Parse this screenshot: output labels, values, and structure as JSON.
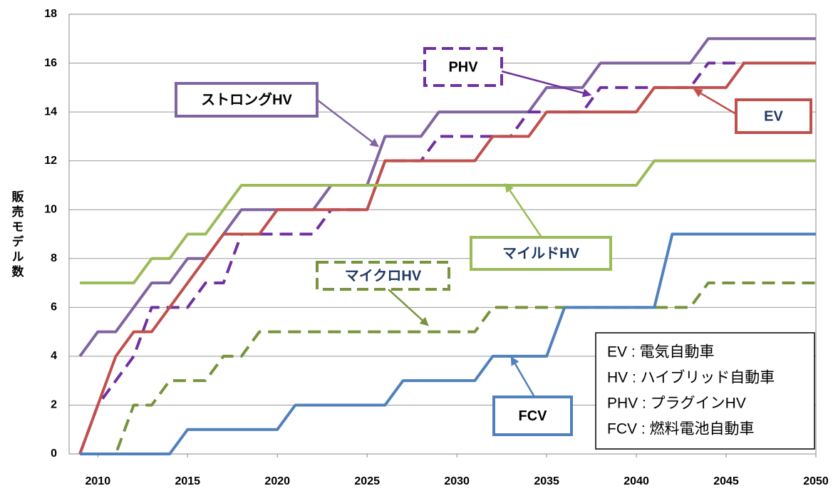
{
  "chart_data": {
    "type": "line",
    "ylabel": "販売モデル数",
    "x": [
      2009,
      2010,
      2011,
      2012,
      2013,
      2014,
      2015,
      2016,
      2017,
      2018,
      2019,
      2020,
      2021,
      2022,
      2023,
      2024,
      2025,
      2026,
      2027,
      2028,
      2029,
      2030,
      2031,
      2032,
      2033,
      2034,
      2035,
      2036,
      2037,
      2038,
      2039,
      2040,
      2041,
      2042,
      2043,
      2044,
      2045,
      2046,
      2047,
      2048,
      2049,
      2050
    ],
    "xlim": [
      2008.4,
      2050
    ],
    "xticks": [
      2010,
      2015,
      2020,
      2025,
      2030,
      2035,
      2040,
      2045,
      2050
    ],
    "ylim": [
      0,
      18
    ],
    "yticks": [
      0,
      2,
      4,
      6,
      8,
      10,
      12,
      14,
      16,
      18
    ],
    "grid": true,
    "series": [
      {
        "name": "ストロングHV",
        "color": "#8064a2",
        "dash": false,
        "values": [
          4,
          5,
          5,
          6,
          7,
          7,
          8,
          8,
          9,
          10,
          10,
          10,
          10,
          10,
          11,
          11,
          11,
          13,
          13,
          13,
          14,
          14,
          14,
          14,
          14,
          14,
          15,
          15,
          15,
          16,
          16,
          16,
          16,
          16,
          16,
          17,
          17,
          17,
          17,
          17,
          17,
          17
        ]
      },
      {
        "name": "PHV",
        "color": "#7030a0",
        "dash": true,
        "values": [
          0,
          2,
          3,
          4,
          6,
          6,
          6,
          7,
          7,
          9,
          9,
          9,
          9,
          9,
          10,
          10,
          10,
          12,
          12,
          12,
          13,
          13,
          13,
          13,
          13,
          14,
          14,
          14,
          14,
          15,
          15,
          15,
          15,
          15,
          15,
          16,
          16,
          16,
          16,
          16,
          16,
          16
        ]
      },
      {
        "name": "EV",
        "color": "#c0504d",
        "dash": false,
        "values": [
          0,
          2,
          4,
          5,
          5,
          6,
          7,
          8,
          9,
          9,
          9,
          10,
          10,
          10,
          10,
          10,
          10,
          12,
          12,
          12,
          12,
          12,
          12,
          13,
          13,
          13,
          14,
          14,
          14,
          14,
          14,
          14,
          15,
          15,
          15,
          15,
          15,
          16,
          16,
          16,
          16,
          16
        ]
      },
      {
        "name": "マイルドHV",
        "color": "#9bbb59",
        "dash": false,
        "values": [
          7,
          7,
          7,
          7,
          8,
          8,
          9,
          9,
          10,
          11,
          11,
          11,
          11,
          11,
          11,
          11,
          11,
          11,
          11,
          11,
          11,
          11,
          11,
          11,
          11,
          11,
          11,
          11,
          11,
          11,
          11,
          11,
          12,
          12,
          12,
          12,
          12,
          12,
          12,
          12,
          12,
          12
        ]
      },
      {
        "name": "マイクロHV",
        "color": "#77933c",
        "dash": true,
        "values": [
          0,
          0,
          0,
          2,
          2,
          3,
          3,
          3,
          4,
          4,
          5,
          5,
          5,
          5,
          5,
          5,
          5,
          5,
          5,
          5,
          5,
          5,
          5,
          6,
          6,
          6,
          6,
          6,
          6,
          6,
          6,
          6,
          6,
          6,
          6,
          7,
          7,
          7,
          7,
          7,
          7,
          7
        ]
      },
      {
        "name": "FCV",
        "color": "#4f81bd",
        "dash": false,
        "values": [
          0,
          0,
          0,
          0,
          0,
          0,
          1,
          1,
          1,
          1,
          1,
          1,
          2,
          2,
          2,
          2,
          2,
          2,
          3,
          3,
          3,
          3,
          3,
          4,
          4,
          4,
          4,
          6,
          6,
          6,
          6,
          6,
          6,
          9,
          9,
          9,
          9,
          9,
          9,
          9,
          9,
          9
        ]
      }
    ],
    "notes": [
      "EV : 電気自動車",
      "HV : ハイブリッド自動車",
      "PHV : プラグインHV",
      "FCV : 燃料電池自動車"
    ]
  }
}
